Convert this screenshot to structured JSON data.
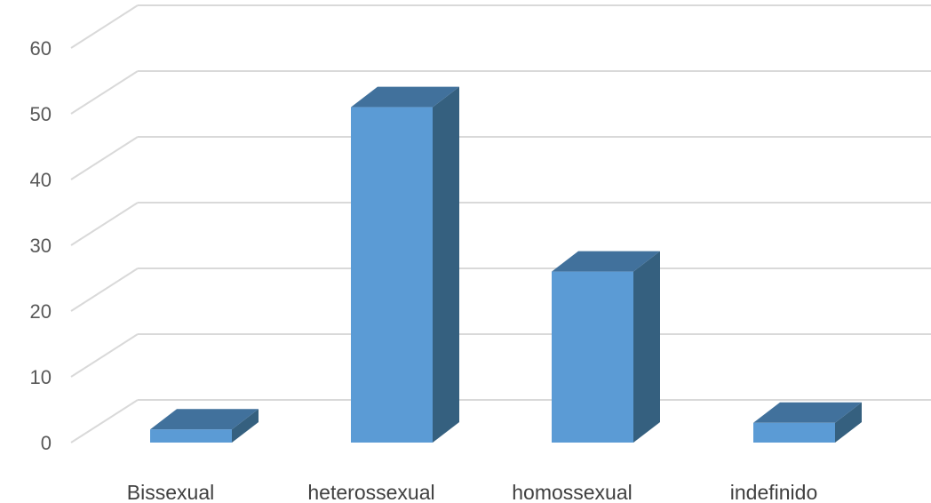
{
  "chart_data": {
    "type": "bar",
    "view": "3d-clustered-column",
    "title": "",
    "xlabel": "",
    "ylabel": "",
    "categories": [
      "Bissexual",
      "heterossexual",
      "homossexual",
      "indefinido"
    ],
    "series": [
      {
        "values": [
          2,
          51,
          26,
          3
        ]
      }
    ],
    "ylim": [
      0,
      60
    ],
    "yticks": [
      0,
      10,
      20,
      30,
      40,
      50,
      60
    ],
    "grid": true,
    "legend": "none",
    "colors": {
      "front": "#5b9bd5",
      "top": "#41719c",
      "side": "#35607f",
      "grid": "#d9d9d9",
      "text": "#595959"
    }
  }
}
